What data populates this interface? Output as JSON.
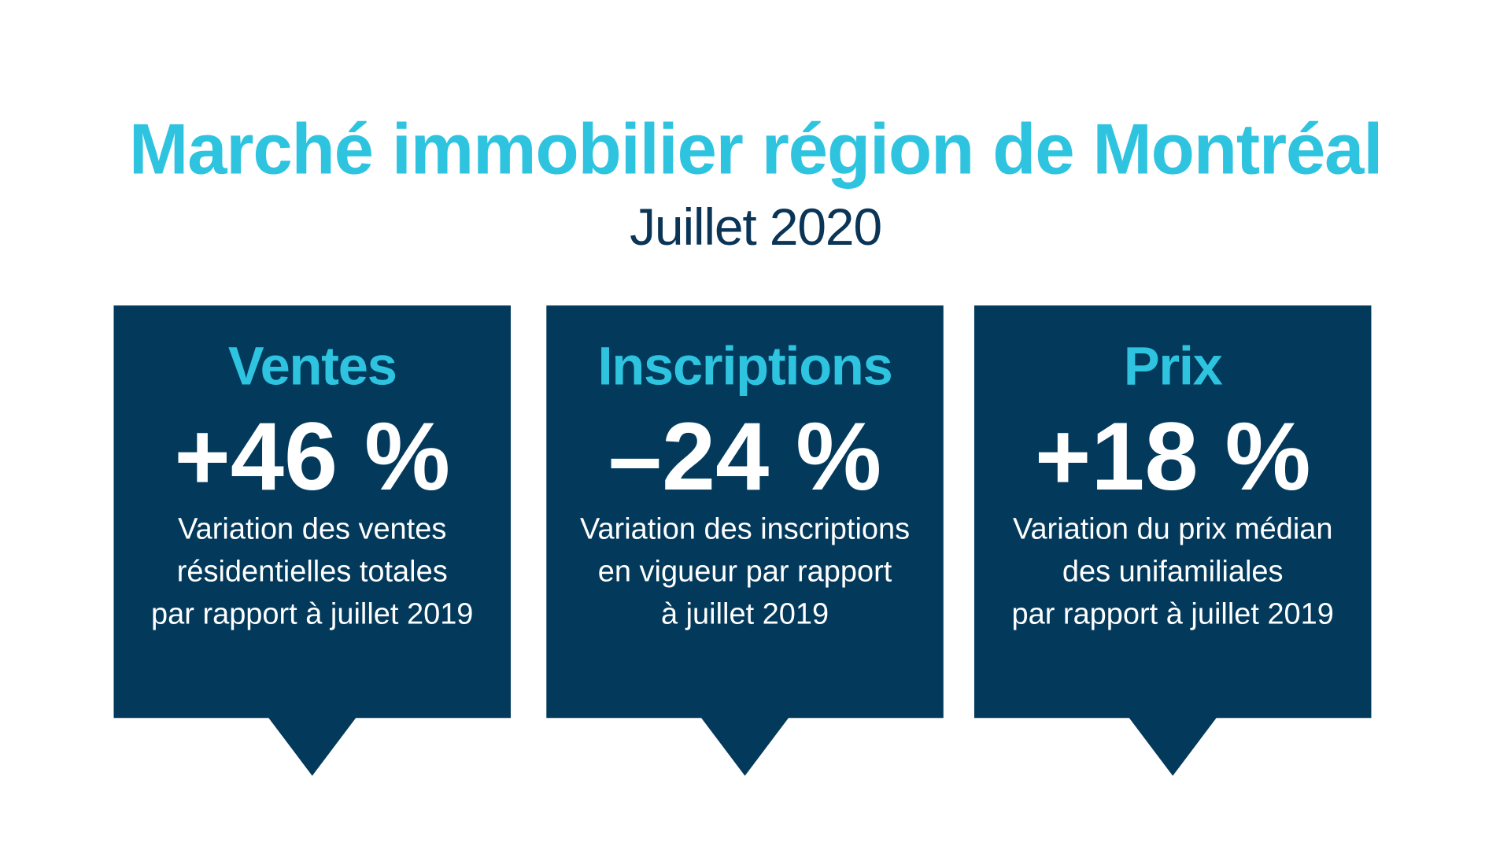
{
  "title": "Marché immobilier région de Montréal",
  "subtitle": "Juillet 2020",
  "colors": {
    "accent": "#2ec4e0",
    "card": "#033a5c",
    "subtitle": "#0b3556"
  },
  "cards": [
    {
      "heading": "Ventes",
      "value": "+46 %",
      "lines": [
        "Variation des ventes",
        "résidentielles totales",
        "par rapport à juillet 2019"
      ]
    },
    {
      "heading": "Inscriptions",
      "value": "–24 %",
      "lines": [
        "Variation des inscriptions",
        "en vigueur par rapport",
        "à juillet 2019"
      ]
    },
    {
      "heading": "Prix",
      "value": "+18 %",
      "lines": [
        "Variation du prix médian",
        "des unifamiliales",
        "par rapport à juillet 2019"
      ]
    }
  ]
}
